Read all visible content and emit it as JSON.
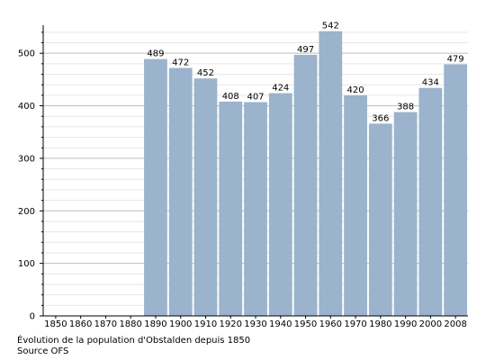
{
  "chart_data": {
    "type": "bar",
    "categories": [
      "1850",
      "1860",
      "1870",
      "1880",
      "1890",
      "1900",
      "1910",
      "1920",
      "1930",
      "1940",
      "1950",
      "1960",
      "1970",
      "1980",
      "1990",
      "2000",
      "2008"
    ],
    "values": [
      null,
      null,
      null,
      null,
      489,
      472,
      452,
      408,
      407,
      424,
      497,
      542,
      420,
      366,
      388,
      434,
      479
    ],
    "ylim": [
      0,
      550
    ],
    "yticks": [
      0,
      100,
      200,
      300,
      400,
      500
    ],
    "grid": true,
    "bar_color": "#9bb3cc",
    "caption": "Évolution de la population d'Obstalden depuis 1850",
    "source": "Source OFS"
  }
}
